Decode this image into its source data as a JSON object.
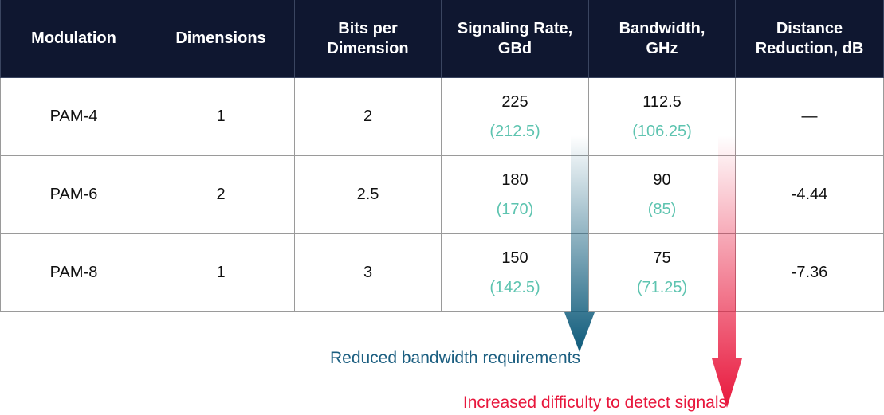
{
  "table": {
    "header": [
      [
        "Modulation"
      ],
      [
        "Dimensions"
      ],
      [
        "Bits per",
        "Dimension"
      ],
      [
        "Signaling Rate,",
        "GBd"
      ],
      [
        "Bandwidth,",
        "GHz"
      ],
      [
        "Distance",
        "Reduction, dB"
      ]
    ],
    "rows": [
      [
        "PAM-4",
        "1",
        "2",
        [
          "225",
          "(212.5)"
        ],
        [
          "112.5",
          "(106.25)"
        ],
        "—"
      ],
      [
        "PAM-6",
        "2",
        "2.5",
        [
          "180",
          "(170)"
        ],
        [
          "90",
          "(85)"
        ],
        "-4.44"
      ],
      [
        "PAM-8",
        "1",
        "3",
        [
          "150",
          "(142.5)"
        ],
        [
          "75",
          "(71.25)"
        ],
        "-7.36"
      ]
    ]
  },
  "annotations": [
    "Reduced bandwidth requirements",
    "Increased difficulty to detect signals"
  ]
}
